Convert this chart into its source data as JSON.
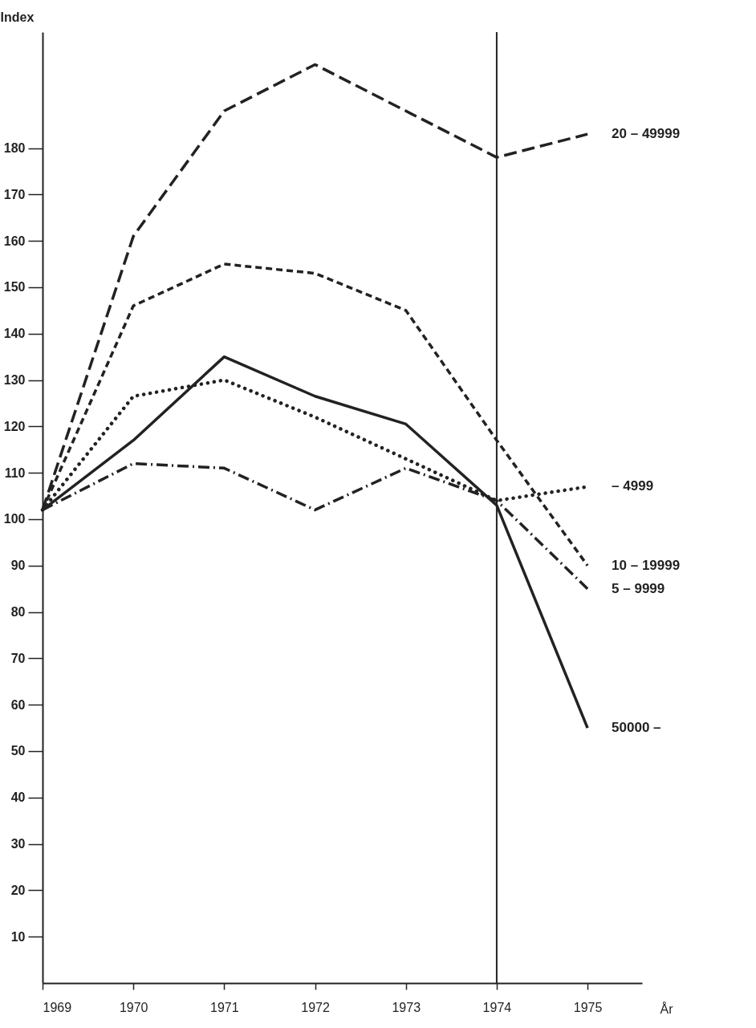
{
  "chart_data": {
    "type": "line",
    "ylabel": "Index",
    "xlabel": "År",
    "x": [
      1969,
      1970,
      1971,
      1972,
      1973,
      1974,
      1975
    ],
    "series": [
      {
        "name": "20 – 49999",
        "color": "#222222",
        "line_style": "longdash",
        "values": [
          102,
          161,
          188,
          198,
          188,
          178,
          183
        ]
      },
      {
        "name": "– 4999",
        "color": "#222222",
        "line_style": "dotted",
        "values": [
          102,
          126.5,
          130,
          122,
          113,
          104,
          107
        ]
      },
      {
        "name": "10 – 19999",
        "color": "#222222",
        "line_style": "dashed",
        "values": [
          102,
          146,
          155,
          153,
          145,
          117,
          90
        ]
      },
      {
        "name": "5 – 9999",
        "color": "#222222",
        "line_style": "dashdot",
        "values": [
          102,
          112,
          111,
          102,
          111,
          104,
          85
        ]
      },
      {
        "name": "50000 –",
        "color": "#222222",
        "line_style": "solid",
        "values": [
          102,
          117,
          135,
          126.5,
          120.5,
          103,
          55
        ]
      }
    ],
    "xlim": [
      1969,
      1975.6
    ],
    "xticks": [
      1969,
      1970,
      1971,
      1972,
      1973,
      1974,
      1975
    ],
    "ylim": [
      0,
      205
    ],
    "yticks": [
      10,
      20,
      30,
      40,
      50,
      60,
      70,
      80,
      90,
      100,
      110,
      120,
      130,
      140,
      150,
      160,
      170,
      180
    ],
    "ref_lines": [
      {
        "axis": "x",
        "value": 1974,
        "color": "#222222"
      }
    ],
    "grid": false
  }
}
